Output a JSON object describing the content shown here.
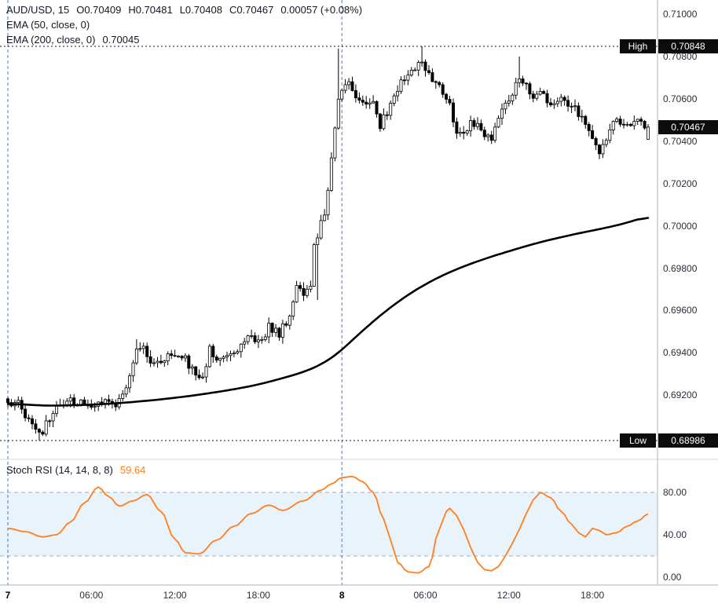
{
  "colors": {
    "background": "#ffffff",
    "candle_up": "#ffffff",
    "candle_down": "#000000",
    "candle_border": "#000000",
    "ema200": "#000000",
    "session_line": "#4a7cc0",
    "highlow_line": "#111111",
    "marker_bg": "#0c0c0c",
    "marker_text": "#ffffff",
    "stoch_line": "#ff7f1e",
    "stoch_band_fill": "#e9f3fc",
    "stoch_band_border": "#93add1",
    "axis_border": "#b2b5be",
    "pane_separator": "#d1d4dc",
    "text": "#131722"
  },
  "chart_data": [
    {
      "type": "candlestick",
      "title": "AUD/USD, 15",
      "legend": {
        "symbol": "AUD/USD, 15",
        "open": "O0.70409",
        "high": "H0.70481",
        "low": "L0.70408",
        "close": "C0.70467",
        "change": "0.00057 (+0.08%)",
        "ema50": "EMA (50, close, 0)",
        "ema200": "EMA (200, close, 0)",
        "ema200_value": "0.70045"
      },
      "y_ticks": [
        "0.71000",
        "0.70800",
        "0.70600",
        "0.70400",
        "0.70200",
        "0.70000",
        "0.69800",
        "0.69600",
        "0.69400",
        "0.69200"
      ],
      "ylim": [
        0.68897,
        0.71067
      ],
      "high_marker": {
        "label": "High",
        "value": "0.70848",
        "price": 0.70848
      },
      "low_marker": {
        "label": "Low",
        "value": "0.68986",
        "price": 0.68986
      },
      "last_price": {
        "value": "0.70467",
        "price": 0.70467
      },
      "last_ohlc": [
        0.70409,
        0.70481,
        0.70408,
        0.70467
      ],
      "candles_n": 185,
      "session_breaks": [
        0,
        96
      ],
      "x_ticks": [
        {
          "label": "7",
          "i": 0,
          "day": true
        },
        {
          "label": "06:00",
          "i": 24
        },
        {
          "label": "12:00",
          "i": 48
        },
        {
          "label": "18:00",
          "i": 72
        },
        {
          "label": "8",
          "i": 96,
          "day": true
        },
        {
          "label": "06:00",
          "i": 120
        },
        {
          "label": "12:00",
          "i": 144
        },
        {
          "label": "18:00",
          "i": 168
        }
      ],
      "price_path": [
        [
          0,
          0.69175
        ],
        [
          4,
          0.6915
        ],
        [
          6,
          0.6908
        ],
        [
          9,
          0.69015
        ],
        [
          11,
          0.6906
        ],
        [
          14,
          0.6914
        ],
        [
          18,
          0.69165
        ],
        [
          24,
          0.69155
        ],
        [
          28,
          0.6919
        ],
        [
          31,
          0.6916
        ],
        [
          33,
          0.692
        ],
        [
          35,
          0.6929
        ],
        [
          37,
          0.6943
        ],
        [
          39,
          0.6942
        ],
        [
          42,
          0.6935
        ],
        [
          45,
          0.6938
        ],
        [
          48,
          0.694
        ],
        [
          51,
          0.6937
        ],
        [
          54,
          0.693
        ],
        [
          56,
          0.6929
        ],
        [
          58,
          0.6942
        ],
        [
          61,
          0.6937
        ],
        [
          64,
          0.694
        ],
        [
          67,
          0.6944
        ],
        [
          70,
          0.6947
        ],
        [
          73,
          0.6945
        ],
        [
          75,
          0.6952
        ],
        [
          78,
          0.6949
        ],
        [
          80,
          0.6955
        ],
        [
          82,
          0.6962
        ],
        [
          83,
          0.6973
        ],
        [
          85,
          0.6968
        ],
        [
          87,
          0.6972
        ],
        [
          88,
          0.699
        ],
        [
          89,
          0.6996
        ],
        [
          91,
          0.7005
        ],
        [
          92,
          0.7015
        ],
        [
          93,
          0.703
        ],
        [
          94,
          0.7048
        ],
        [
          95,
          0.706
        ],
        [
          97,
          0.7068
        ],
        [
          99,
          0.7065
        ],
        [
          101,
          0.706
        ],
        [
          103,
          0.7056
        ],
        [
          105,
          0.706
        ],
        [
          107,
          0.7048
        ],
        [
          109,
          0.7054
        ],
        [
          111,
          0.7062
        ],
        [
          113,
          0.7068
        ],
        [
          115,
          0.7072
        ],
        [
          117,
          0.7074
        ],
        [
          119,
          0.7078
        ],
        [
          121,
          0.7072
        ],
        [
          123,
          0.7068
        ],
        [
          125,
          0.7064
        ],
        [
          127,
          0.7056
        ],
        [
          129,
          0.7045
        ],
        [
          131,
          0.7042
        ],
        [
          133,
          0.7048
        ],
        [
          135,
          0.705
        ],
        [
          137,
          0.7044
        ],
        [
          139,
          0.7042
        ],
        [
          141,
          0.705
        ],
        [
          143,
          0.7058
        ],
        [
          145,
          0.7064
        ],
        [
          147,
          0.707
        ],
        [
          149,
          0.7066
        ],
        [
          151,
          0.7062
        ],
        [
          153,
          0.7064
        ],
        [
          155,
          0.706
        ],
        [
          157,
          0.7058
        ],
        [
          159,
          0.706
        ],
        [
          161,
          0.7056
        ],
        [
          163,
          0.7056
        ],
        [
          165,
          0.705
        ],
        [
          167,
          0.7044
        ],
        [
          169,
          0.7039
        ],
        [
          170,
          0.7036
        ],
        [
          172,
          0.7042
        ],
        [
          174,
          0.705
        ],
        [
          176,
          0.7048
        ],
        [
          178,
          0.7046
        ],
        [
          180,
          0.705
        ],
        [
          182,
          0.7048
        ],
        [
          184,
          0.70467
        ]
      ],
      "wick_highs": [
        [
          95,
          0.70838
        ],
        [
          119,
          0.70848
        ],
        [
          147,
          0.708
        ],
        [
          37,
          0.69465
        ]
      ],
      "wick_lows": [
        [
          9,
          0.68986
        ],
        [
          89,
          0.6965
        ],
        [
          170,
          0.7033
        ]
      ],
      "ema200_path": [
        [
          0,
          0.6916
        ],
        [
          12,
          0.6915
        ],
        [
          24,
          0.69155
        ],
        [
          34,
          0.69165
        ],
        [
          44,
          0.6918
        ],
        [
          54,
          0.692
        ],
        [
          64,
          0.69225
        ],
        [
          72,
          0.6925
        ],
        [
          80,
          0.69285
        ],
        [
          86,
          0.69315
        ],
        [
          90,
          0.69345
        ],
        [
          94,
          0.69385
        ],
        [
          96,
          0.69415
        ],
        [
          100,
          0.69475
        ],
        [
          104,
          0.69535
        ],
        [
          108,
          0.6959
        ],
        [
          112,
          0.6964
        ],
        [
          116,
          0.69685
        ],
        [
          120,
          0.69725
        ],
        [
          126,
          0.69775
        ],
        [
          132,
          0.69815
        ],
        [
          138,
          0.6985
        ],
        [
          144,
          0.6988
        ],
        [
          150,
          0.6991
        ],
        [
          156,
          0.69935
        ],
        [
          162,
          0.69958
        ],
        [
          168,
          0.69978
        ],
        [
          174,
          0.69998
        ],
        [
          179,
          0.7002
        ],
        [
          184,
          0.70045
        ]
      ]
    },
    {
      "type": "line",
      "title": "Stoch RSI (14, 14, 8, 8)",
      "value": "59.64",
      "y_ticks": [
        "80.00",
        "40.00",
        "0.00"
      ],
      "ylim": [
        0,
        100
      ],
      "band": [
        20,
        80
      ],
      "series": [
        [
          0,
          46
        ],
        [
          5,
          43
        ],
        [
          10,
          38
        ],
        [
          14,
          40
        ],
        [
          18,
          52
        ],
        [
          22,
          70
        ],
        [
          26,
          85
        ],
        [
          29,
          76
        ],
        [
          32,
          67
        ],
        [
          36,
          72
        ],
        [
          40,
          78
        ],
        [
          44,
          62
        ],
        [
          48,
          36
        ],
        [
          51,
          23
        ],
        [
          55,
          22
        ],
        [
          60,
          35
        ],
        [
          65,
          48
        ],
        [
          70,
          60
        ],
        [
          75,
          68
        ],
        [
          79,
          63
        ],
        [
          85,
          72
        ],
        [
          90,
          82
        ],
        [
          93,
          88
        ],
        [
          96,
          94
        ],
        [
          99,
          95
        ],
        [
          102,
          90
        ],
        [
          105,
          80
        ],
        [
          108,
          55
        ],
        [
          110,
          35
        ],
        [
          112,
          14
        ],
        [
          115,
          5
        ],
        [
          118,
          4
        ],
        [
          121,
          10
        ],
        [
          124,
          45
        ],
        [
          126,
          62
        ],
        [
          127,
          65
        ],
        [
          129,
          58
        ],
        [
          131,
          45
        ],
        [
          133,
          28
        ],
        [
          135,
          14
        ],
        [
          137,
          7
        ],
        [
          139,
          6
        ],
        [
          141,
          10
        ],
        [
          143,
          20
        ],
        [
          145,
          32
        ],
        [
          147,
          45
        ],
        [
          149,
          60
        ],
        [
          151,
          73
        ],
        [
          153,
          80
        ],
        [
          156,
          75
        ],
        [
          159,
          62
        ],
        [
          162,
          50
        ],
        [
          164,
          42
        ],
        [
          166,
          38
        ],
        [
          168,
          46
        ],
        [
          170,
          44
        ],
        [
          172,
          40
        ],
        [
          175,
          42
        ],
        [
          178,
          48
        ],
        [
          181,
          53
        ],
        [
          184,
          59.64
        ]
      ]
    }
  ]
}
